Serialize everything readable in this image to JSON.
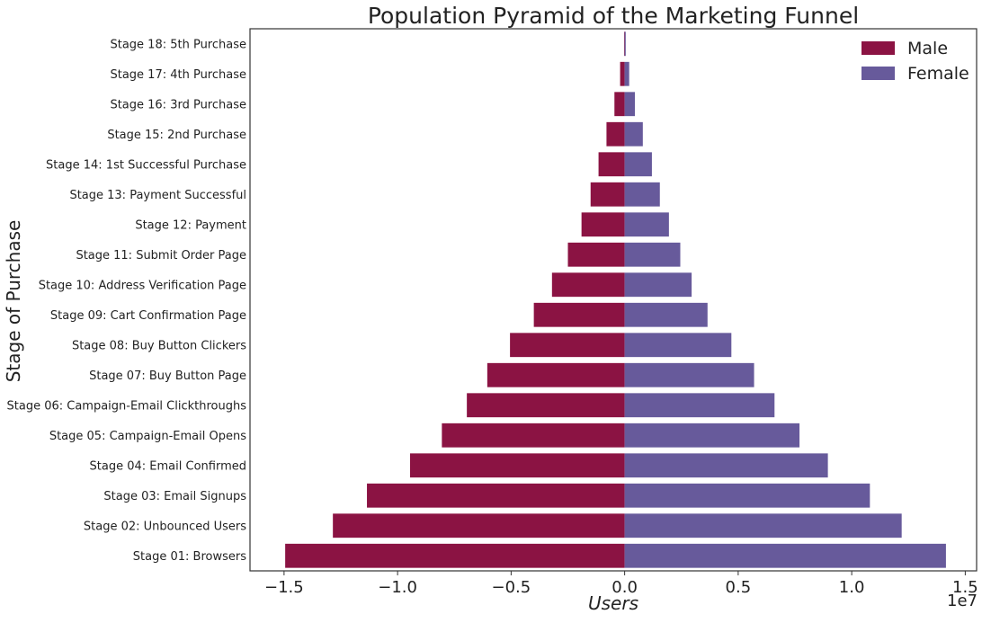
{
  "chart_data": {
    "type": "bar",
    "orientation": "horizontal",
    "title": "Population Pyramid of the Marketing Funnel",
    "xlabel": "Users",
    "ylabel": "Stage of Purchase",
    "offset_label": "1e7",
    "xlim": [
      -16500000.0,
      15500000.0
    ],
    "xticks": [
      -15000000.0,
      -10000000.0,
      -5000000.0,
      0,
      5000000.0,
      10000000.0,
      15000000.0
    ],
    "xtick_labels": [
      "−1.5",
      "−1.0",
      "−0.5",
      "0.0",
      "0.5",
      "1.0",
      "1.5"
    ],
    "legend_position": "top-right",
    "grid": false,
    "categories": [
      "Stage 18: 5th Purchase",
      "Stage 17: 4th Purchase",
      "Stage 16: 3rd Purchase",
      "Stage 15: 2nd Purchase",
      "Stage 14: 1st Successful Purchase",
      "Stage 13: Payment Successful",
      "Stage 12: Payment",
      "Stage 11: Submit Order Page",
      "Stage 10: Address Verification Page",
      "Stage 09: Cart Confirmation Page",
      "Stage 08: Buy Button Clickers",
      "Stage 07: Buy Button Page",
      "Stage 06: Campaign-Email Clickthroughs",
      "Stage 05: Campaign-Email Opens",
      "Stage 04: Email Confirmed",
      "Stage 03: Email Signups",
      "Stage 02: Unbounced Users",
      "Stage 01: Browsers"
    ],
    "series": [
      {
        "name": "Male",
        "color": "#8b1343",
        "values": [
          -20000,
          -200000,
          -450000,
          -800000,
          -1150000,
          -1500000,
          -1900000,
          -2500000,
          -3200000,
          -4000000,
          -5050000,
          -6050000,
          -6950000,
          -8050000,
          -9450000,
          -11350000,
          -12850000,
          -14950000
        ]
      },
      {
        "name": "Female",
        "color": "#675a9b",
        "values": [
          30000,
          200000,
          450000,
          800000,
          1200000,
          1550000,
          1950000,
          2450000,
          2950000,
          3650000,
          4700000,
          5700000,
          6600000,
          7700000,
          8950000,
          10800000,
          12200000,
          14150000
        ]
      }
    ]
  }
}
